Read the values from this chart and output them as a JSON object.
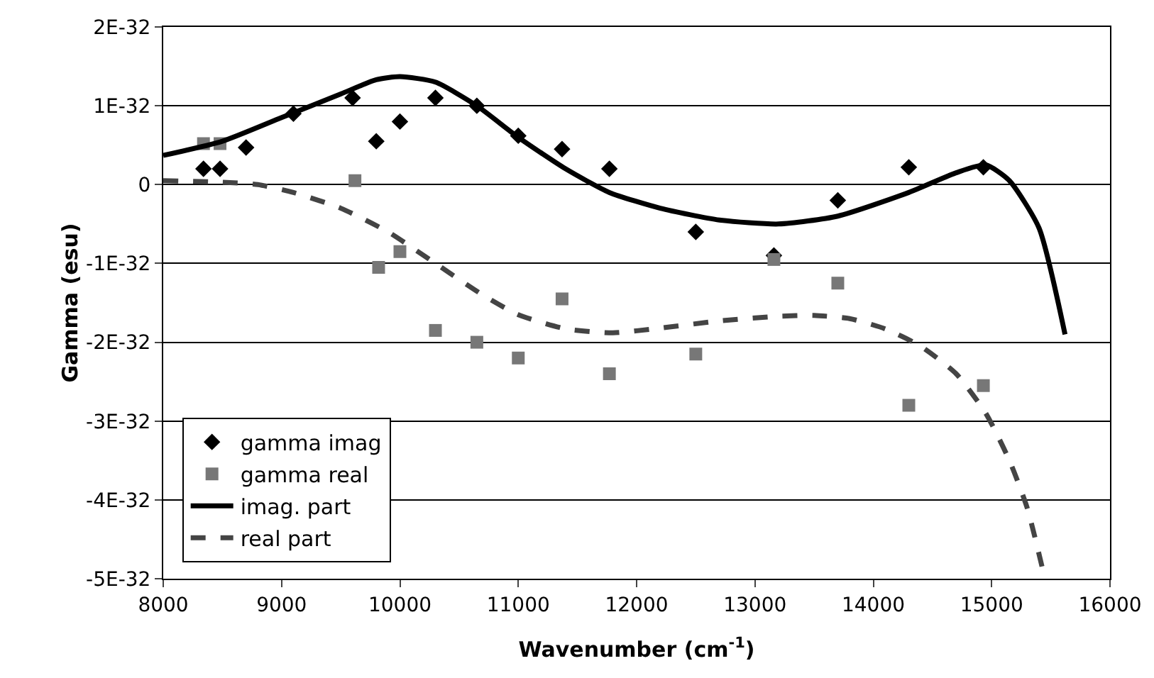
{
  "chart_data": {
    "type": "scatter",
    "xlabel": "Wavenumber (cm$^{-1}$)",
    "ylabel": "Gamma (esu)",
    "xlim": [
      8000,
      16000
    ],
    "xticks": [
      8000,
      9000,
      10000,
      11000,
      12000,
      13000,
      14000,
      15000,
      16000
    ],
    "ylim": [
      -5e-32,
      2e-32
    ],
    "yticks": [
      {
        "value": -5e-32,
        "label": "-5E-32"
      },
      {
        "value": -4e-32,
        "label": "-4E-32"
      },
      {
        "value": -3e-32,
        "label": "-3E-32"
      },
      {
        "value": -2e-32,
        "label": "-2E-32"
      },
      {
        "value": -1e-32,
        "label": "-1E-32"
      },
      {
        "value": 0,
        "label": "0"
      },
      {
        "value": 1e-32,
        "label": "1E-32"
      },
      {
        "value": 2e-32,
        "label": "2E-32"
      }
    ],
    "grid": "y",
    "legend": "bottom left",
    "series": [
      {
        "name": "gamma imag",
        "marker": "diamond",
        "color": "#000000",
        "x": [
          8340,
          8480,
          8700,
          9100,
          9600,
          9800,
          10000,
          10300,
          10650,
          11000,
          11370,
          11770,
          12500,
          13160,
          13700,
          14300,
          14930
        ],
        "values": [
          2e-33,
          2e-33,
          4.7e-33,
          9e-33,
          1.1e-32,
          5.5e-33,
          8e-33,
          1.1e-32,
          1e-32,
          6.2e-33,
          4.5e-33,
          2e-33,
          -6e-33,
          -9e-33,
          -2e-33,
          2.2e-33,
          2.2e-33
        ]
      },
      {
        "name": "gamma real",
        "marker": "square",
        "color": "#777777",
        "x": [
          8340,
          8480,
          9620,
          9820,
          10000,
          10300,
          10650,
          11000,
          11370,
          11770,
          12500,
          13160,
          13700,
          14300,
          14930
        ],
        "values": [
          5.2e-33,
          5.2e-33,
          5e-34,
          -1.05e-32,
          -8.5e-33,
          -1.85e-32,
          -2e-32,
          -2.2e-32,
          -1.45e-32,
          -2.4e-32,
          -2.15e-32,
          -9.5e-33,
          -1.25e-32,
          -2.8e-32,
          -2.55e-32
        ]
      },
      {
        "name": "imag. part",
        "type": "line",
        "marker": "none",
        "line_style": "solid",
        "color": "#000000",
        "x": [
          8000,
          8500,
          9000,
          9500,
          9800,
          10000,
          10300,
          10650,
          11000,
          11400,
          11770,
          12200,
          12700,
          13200,
          13700,
          14300,
          14700,
          14950,
          15150,
          15400,
          15620
        ],
        "values": [
          3.7e-33,
          5.5e-33,
          8.5e-33,
          1.15e-32,
          1.33e-32,
          1.37e-32,
          1.3e-32,
          1e-32,
          6e-33,
          2e-33,
          -1e-33,
          -3e-33,
          -4.5e-33,
          -5e-33,
          -4e-33,
          -1e-33,
          1.5e-33,
          2.5e-33,
          5e-34,
          -5.5e-33,
          -1.9e-32
        ]
      },
      {
        "name": "real part",
        "type": "line",
        "marker": "none",
        "line_style": "dashed",
        "color": "#444444",
        "x": [
          8000,
          8500,
          8800,
          9100,
          9500,
          9900,
          10300,
          10700,
          11000,
          11400,
          11800,
          12200,
          12700,
          13200,
          13500,
          13800,
          14100,
          14400,
          14700,
          14950,
          15150,
          15300,
          15450
        ],
        "values": [
          5e-34,
          3e-34,
          0,
          -1e-33,
          -3e-33,
          -6e-33,
          -1e-32,
          -1.4e-32,
          -1.65e-32,
          -1.83e-32,
          -1.88e-32,
          -1.82e-32,
          -1.73e-32,
          -1.67e-32,
          -1.66e-32,
          -1.7e-32,
          -1.83e-32,
          -2.05e-32,
          -2.4e-32,
          -2.9e-32,
          -3.5e-32,
          -4.1e-32,
          -5e-32
        ]
      }
    ]
  }
}
